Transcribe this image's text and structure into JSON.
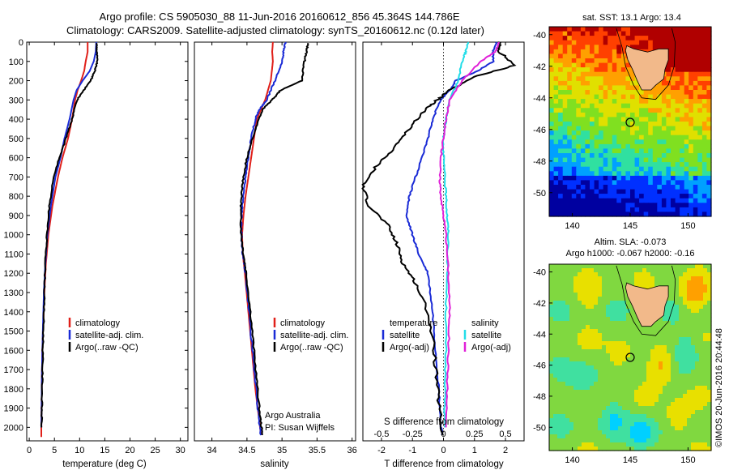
{
  "header": {
    "title_line1": "Argo profile: CS 5905030_88 11-Jun-2016 20160612_856 45.364S 144.786E",
    "title_line2": "Climatology: CARS2009. Satellite-adjusted climatology: synTS_20160612.nc (0.12d later)"
  },
  "colors": {
    "climatology": "#e0201a",
    "satellite": "#1a2bd6",
    "argo": "#000000",
    "salinity_satellite": "#22dde8",
    "salinity_argo": "#e020d8",
    "land": "#f2b98a"
  },
  "chart_data": [
    {
      "type": "line",
      "name": "temperature-profile",
      "xlabel": "temperature (deg C)",
      "ylabel": "",
      "xlim": [
        -0.5,
        31.5
      ],
      "ylim": [
        2070,
        0
      ],
      "xticks": [
        0,
        5,
        10,
        15,
        20,
        25,
        30
      ],
      "yticks": [
        0,
        100,
        200,
        300,
        400,
        500,
        600,
        700,
        800,
        900,
        1000,
        1100,
        1200,
        1300,
        1400,
        1500,
        1600,
        1700,
        1800,
        1900,
        2000
      ],
      "legend": [
        "climatology",
        "satellite-adj. clim.",
        "Argo(..raw -QC)"
      ],
      "legend_position": "lower-right",
      "series": [
        {
          "name": "climatology",
          "x": [
            11.6,
            11.6,
            11.2,
            10.9,
            10.3,
            9.6,
            9.1,
            8.5,
            7.7,
            6.6,
            5.7,
            4.6,
            3.8,
            3.3,
            3.0,
            2.8,
            2.6,
            2.5,
            2.45,
            2.4,
            2.4
          ],
          "y": [
            0,
            50,
            100,
            150,
            200,
            250,
            300,
            400,
            500,
            600,
            700,
            850,
            1000,
            1150,
            1300,
            1450,
            1600,
            1750,
            1900,
            2000,
            2050
          ]
        },
        {
          "name": "satellite-adj. clim.",
          "x": [
            13.3,
            13.2,
            12.8,
            12.0,
            10.6,
            9.4,
            8.8,
            8.0,
            7.0,
            6.2,
            5.2,
            4.3,
            3.6,
            3.2,
            2.9,
            2.75,
            2.6,
            2.5,
            2.45,
            2.4
          ],
          "y": [
            0,
            50,
            100,
            150,
            200,
            250,
            300,
            400,
            500,
            600,
            700,
            850,
            1000,
            1150,
            1300,
            1450,
            1600,
            1750,
            1900,
            2000
          ]
        },
        {
          "name": "Argo(..raw -QC)",
          "x": [
            13.4,
            13.4,
            13.5,
            13.0,
            12.2,
            10.8,
            9.5,
            8.5,
            7.3,
            6.0,
            4.8,
            4.0,
            3.5,
            3.2,
            3.0,
            2.85,
            2.7,
            2.6,
            2.5,
            2.45
          ],
          "y": [
            5,
            50,
            100,
            150,
            200,
            250,
            300,
            400,
            500,
            600,
            700,
            850,
            1000,
            1150,
            1300,
            1450,
            1600,
            1750,
            1900,
            2000
          ]
        }
      ]
    },
    {
      "type": "line",
      "name": "salinity-profile",
      "xlabel": "salinity",
      "ylabel": "",
      "xlim": [
        33.75,
        36.05
      ],
      "ylim": [
        2070,
        0
      ],
      "xticks": [
        34,
        34.5,
        35,
        35.5,
        36
      ],
      "xtick_labels": [
        "34",
        "34.5",
        "35",
        "35.5",
        "36"
      ],
      "legend": [
        "climatology",
        "satellite-adj. clim.",
        "Argo(..raw -QC)"
      ],
      "legend_position": "lower-right",
      "annotations": [
        "Argo Australia",
        "PI: Susan Wijffels"
      ],
      "series": [
        {
          "name": "climatology",
          "x": [
            34.87,
            34.86,
            34.87,
            34.84,
            34.76,
            34.7,
            34.64,
            34.6,
            34.56,
            34.52,
            34.48,
            34.45,
            34.43,
            34.44,
            34.47,
            34.52,
            34.57,
            34.62,
            34.67,
            34.7
          ],
          "y": [
            0,
            50,
            100,
            200,
            300,
            350,
            400,
            500,
            600,
            700,
            800,
            900,
            1000,
            1100,
            1200,
            1400,
            1600,
            1800,
            1950,
            2040
          ]
        },
        {
          "name": "satellite-adj. clim.",
          "x": [
            35.05,
            35.02,
            35.0,
            34.9,
            34.78,
            34.68,
            34.62,
            34.56,
            34.52,
            34.48,
            34.45,
            34.42,
            34.42,
            34.44,
            34.48,
            34.53,
            34.58,
            34.63,
            34.67,
            34.7
          ],
          "y": [
            0,
            50,
            100,
            200,
            300,
            350,
            400,
            500,
            600,
            700,
            800,
            900,
            1000,
            1100,
            1200,
            1400,
            1600,
            1800,
            1950,
            2040
          ]
        },
        {
          "name": "Argo(..raw -QC)",
          "x": [
            35.37,
            35.35,
            35.32,
            35.28,
            34.98,
            34.86,
            34.72,
            34.62,
            34.5,
            34.45,
            34.42,
            34.41,
            34.42,
            34.45,
            34.49,
            34.55,
            34.6,
            34.65,
            34.69,
            34.72
          ],
          "y": [
            5,
            50,
            100,
            200,
            250,
            300,
            350,
            450,
            600,
            700,
            800,
            900,
            1000,
            1100,
            1200,
            1400,
            1600,
            1800,
            1950,
            2040
          ]
        }
      ]
    },
    {
      "type": "line",
      "name": "difference-profile",
      "xlabel": "T difference from climatology",
      "top_axis_label": "S difference from climatology",
      "xlim": [
        -2.6,
        2.6
      ],
      "ylim": [
        2070,
        0
      ],
      "xticks": [
        -2,
        -1,
        0,
        1,
        2
      ],
      "xtick_labels": [
        "-2",
        "-1",
        "0",
        "1",
        "2"
      ],
      "sticks_labels": [
        "-0.5",
        "-0.25",
        "0",
        "0.25",
        "0.5"
      ],
      "s_scale": 4,
      "legend_left_title": "temperature",
      "legend_right_title": "salinity",
      "legend": [
        "satellite",
        "Argo(-adj)",
        "satellite",
        "Argo(-adj)"
      ],
      "series": [
        {
          "name": "temperature satellite",
          "kind": "T",
          "x": [
            1.7,
            1.6,
            1.6,
            1.1,
            0.4,
            0.2,
            -0.1,
            -0.35,
            -0.5,
            -0.7,
            -0.9,
            -1.1,
            -1.2,
            -1.0,
            -0.8,
            -0.5,
            -0.35,
            -0.25,
            -0.15,
            -0.1,
            -0.05
          ],
          "y": [
            0,
            50,
            100,
            150,
            200,
            250,
            300,
            400,
            500,
            600,
            700,
            800,
            900,
            1000,
            1100,
            1200,
            1400,
            1600,
            1800,
            1950,
            2040
          ]
        },
        {
          "name": "temperature Argo(-adj)",
          "kind": "T",
          "x": [
            1.8,
            1.8,
            2.3,
            1.0,
            0.2,
            -0.2,
            -0.6,
            -1.1,
            -1.6,
            -2.2,
            -2.6,
            -2.4,
            -1.8,
            -1.5,
            -1.3,
            -0.9,
            -0.5,
            -0.3,
            -0.2,
            -0.1,
            -0.05
          ],
          "y": [
            0,
            50,
            120,
            180,
            250,
            300,
            350,
            450,
            550,
            650,
            750,
            850,
            950,
            1050,
            1150,
            1250,
            1400,
            1600,
            1800,
            1950,
            2040
          ]
        },
        {
          "name": "salinity satellite",
          "kind": "S",
          "x": [
            0.2,
            0.18,
            0.15,
            0.12,
            0.05,
            0.02,
            0.0,
            0.0,
            0.01,
            0.02,
            0.03,
            0.04,
            0.03,
            0.02,
            0.02,
            0.01,
            0.01
          ],
          "y": [
            0,
            50,
            100,
            200,
            300,
            400,
            500,
            600,
            700,
            800,
            900,
            1000,
            1200,
            1400,
            1600,
            1800,
            2000
          ]
        },
        {
          "name": "salinity Argo(-adj)",
          "kind": "S",
          "x": [
            0.45,
            0.42,
            0.3,
            0.15,
            0.05,
            0.02,
            0.0,
            -0.02,
            -0.03,
            -0.02,
            0.0,
            0.02,
            0.04,
            0.05,
            0.04,
            0.03,
            0.02
          ],
          "y": [
            0,
            50,
            100,
            200,
            300,
            400,
            500,
            600,
            700,
            800,
            900,
            1000,
            1200,
            1400,
            1600,
            1800,
            2000
          ]
        }
      ]
    },
    {
      "type": "heatmap",
      "name": "sst-map",
      "title": "sat. SST: 13.1  Argo: 13.4",
      "xlim": [
        138,
        152
      ],
      "ylim": [
        -51.5,
        -39.5
      ],
      "xticks": [
        140,
        145,
        150
      ],
      "yticks": [
        -40,
        -42,
        -44,
        -46,
        -48,
        -50
      ],
      "marker": {
        "lon": 144.786,
        "lat": -45.364
      },
      "colormap": [
        "#0000a0",
        "#0030ff",
        "#00a0ff",
        "#30e0a0",
        "#80e020",
        "#e0e000",
        "#ffa000",
        "#ff4000",
        "#b00000"
      ]
    },
    {
      "type": "heatmap",
      "name": "sla-map",
      "title": "Altim. SLA: -0.073",
      "subtitle": "Argo h1000: -0.067  h2000: -0.16",
      "xlim": [
        138,
        152
      ],
      "ylim": [
        -51.5,
        -39.5
      ],
      "xticks": [
        140,
        145,
        150
      ],
      "yticks": [
        -40,
        -42,
        -44,
        -46,
        -48,
        -50
      ],
      "marker": {
        "lon": 144.786,
        "lat": -45.364
      },
      "colormap": [
        "#0000a0",
        "#0060ff",
        "#00d0ff",
        "#40e0a0",
        "#80d840",
        "#e8e000",
        "#ffa000",
        "#ff4000",
        "#b00000"
      ]
    }
  ],
  "footer": {
    "credit": "©IMOS 20-Jun-2016 20:44:48"
  }
}
